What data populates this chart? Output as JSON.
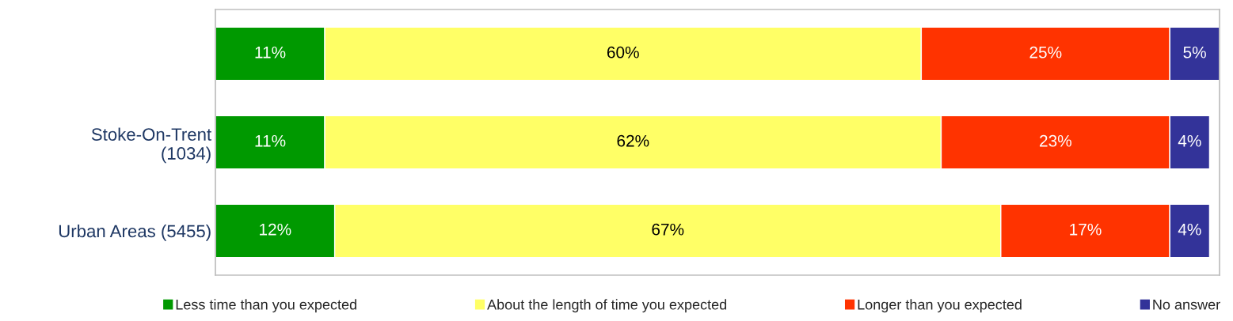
{
  "chart_data": {
    "type": "bar",
    "orientation": "horizontal",
    "stacked": true,
    "legend": "bottom",
    "grid": false,
    "categories": [
      null,
      "Stoke-On-Trent\n(1034)",
      "Urban Areas (5455)"
    ],
    "series": [
      {
        "name": "Less time than you expected",
        "color": "#009900",
        "values": [
          11,
          11,
          12
        ],
        "value_labels": [
          "11%",
          "11%",
          "12%"
        ]
      },
      {
        "name": "About the length of time you expected",
        "color": "#ffff66",
        "values": [
          60,
          62,
          67
        ],
        "value_labels": [
          "60%",
          "62%",
          "67%"
        ]
      },
      {
        "name": "Longer than you expected",
        "color": "#ff3300",
        "values": [
          25,
          23,
          17
        ],
        "value_labels": [
          "25%",
          "23%",
          "17%"
        ]
      },
      {
        "name": "No answer",
        "color": "#333399",
        "values": [
          5,
          4,
          4
        ],
        "value_labels": [
          "5%",
          "4%",
          "4%"
        ]
      }
    ]
  }
}
